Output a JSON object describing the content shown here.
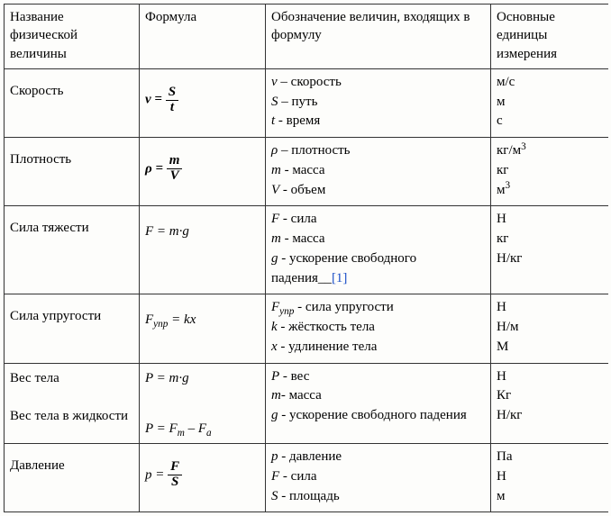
{
  "headers": {
    "name": "Название физической величины",
    "formula": "Формула",
    "definitions": "Обозначение величин, входящих в формулу",
    "units": "Основные единицы измерения"
  },
  "rows": [
    {
      "name": "Скорость",
      "formula_html": "<span class='bold formula'><span class='vam'>v</span> = <span class='frac'><span class='num'>S</span><span class='den'>t</span></span></span>",
      "defs": [
        "<i>v</i> – скорость",
        "<i>S</i> – путь",
        "<i>t</i>  - время"
      ],
      "units": [
        "м/с",
        "м",
        "с"
      ]
    },
    {
      "name": "Плотность",
      "formula_html": "<span class='bold formula'><span class='vam'>ρ</span> = <span class='frac'><span class='num'>m</span><span class='den'>V</span></span></span>",
      "defs": [
        "<i>ρ</i> – плотность",
        "<i>m</i> -  масса",
        "<i>V</i> - объем"
      ],
      "units": [
        "кг/м<span class='sup'>3</span>",
        "кг",
        "м<span class='sup'>3</span>"
      ]
    },
    {
      "name": "Сила тяжести",
      "formula_html": "<span class='formula'>F = m·g</span>",
      "defs": [
        "<i>F</i> -  сила",
        "<i>m</i> - масса",
        "<i>g</i> -  ускорение свободного",
        "падения__<a class='ref' href='#'>[1]</a>"
      ],
      "units": [
        "Н",
        "кг",
        " Н/кг"
      ]
    },
    {
      "name": "Сила упругости",
      "formula_html": "<span class='formula'>F<span class='sub'>упр</span> = kx</span>",
      "defs": [
        "<i>F<span class='sub'>упр</span></i> - сила упругости",
        "<i>k</i> - жёсткость тела",
        "<i>x</i> - удлинение тела"
      ],
      "units": [
        "Н",
        "Н/м",
        "М"
      ]
    },
    {
      "name": "Вес тела",
      "name2": "Вес тела в жидкости",
      "formula_html": "<span class='formula'>P = m·g</span>",
      "formula2_html": "<span class='formula'>P = F<span class='sub'>m</span> – F<span class='sub'>а</span></span>",
      "defs": [
        "<i>P</i> - вес",
        "<i>m</i>-  масса",
        "<i>g</i> -  ускорение свободного падения"
      ],
      "units": [
        "Н",
        "Кг",
        "Н/кг"
      ]
    },
    {
      "name": "Давление",
      "formula_html": "<span class='formula'><span class='vam'>p</span> = <span class='frac bold'><span class='num'>F</span><span class='den'>S</span></span></span>",
      "defs": [
        "<i>p</i> - давление",
        "<i>F</i> - сила",
        "<i>S</i> - площадь"
      ],
      "units": [
        "Па",
        "Н",
        "м"
      ]
    }
  ]
}
